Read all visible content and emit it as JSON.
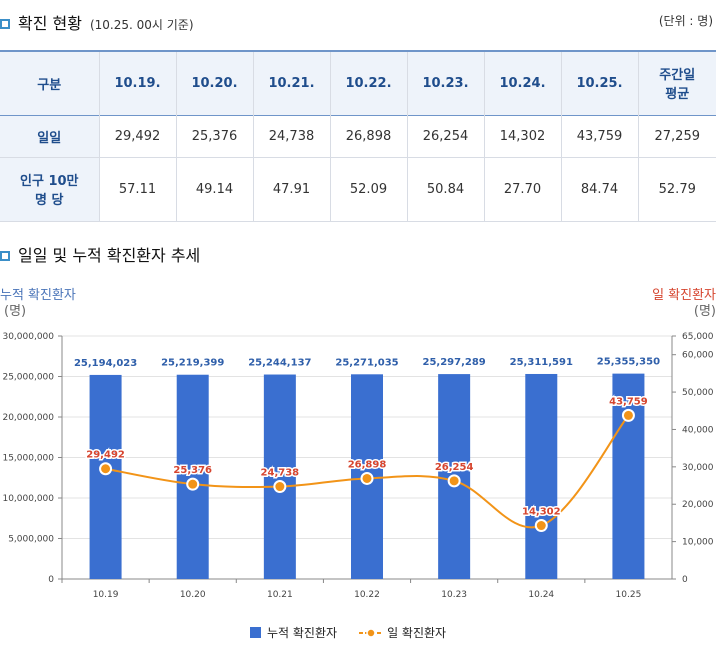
{
  "header": {
    "title": "확진 현황",
    "subtitle": "(10.25. 00시 기준)",
    "unit": "(단위 : 명)"
  },
  "table": {
    "corner": "구분",
    "columns": [
      "10.19.",
      "10.20.",
      "10.21.",
      "10.22.",
      "10.23.",
      "10.24.",
      "10.25.",
      "주간일\n평균"
    ],
    "rows": [
      {
        "label": "일일",
        "cells": [
          "29,492",
          "25,376",
          "24,738",
          "26,898",
          "26,254",
          "14,302",
          "43,759",
          "27,259"
        ]
      },
      {
        "label": "인구 10만\n명 당",
        "cells": [
          "57.11",
          "49.14",
          "47.91",
          "52.09",
          "50.84",
          "27.70",
          "84.74",
          "52.79"
        ]
      }
    ]
  },
  "chart_section": {
    "title": "일일 및 누적 확진환자 추세"
  },
  "colors": {
    "bar": "#3a6fd0",
    "line": "#f29418",
    "bar_label": "#2f5faa",
    "line_label": "#d6452f",
    "left_axis_title": "#4a74b8",
    "right_axis_title": "#d6452f"
  },
  "chart_data": {
    "type": "bar",
    "title": "일일 및 누적 확진환자 추세",
    "categories": [
      "10.19",
      "10.20",
      "10.21",
      "10.22",
      "10.23",
      "10.24",
      "10.25"
    ],
    "series": [
      {
        "name": "누적 확진환자",
        "kind": "bar",
        "axis": "left",
        "values": [
          25194023,
          25219399,
          25244137,
          25271035,
          25297289,
          25311591,
          25355350
        ],
        "labels": [
          "25,194,023",
          "25,219,399",
          "25,244,137",
          "25,271,035",
          "25,297,289",
          "25,311,591",
          "25,355,350"
        ]
      },
      {
        "name": "일 확진환자",
        "kind": "line",
        "axis": "right",
        "values": [
          29492,
          25376,
          24738,
          26898,
          26254,
          14302,
          43759
        ],
        "labels": [
          "29,492",
          "25,376",
          "24,738",
          "26,898",
          "26,254",
          "14,302",
          "43,759"
        ]
      }
    ],
    "left_axis": {
      "title": "누적 확진환자",
      "unit": "(명)",
      "ylim": [
        0,
        30000000
      ],
      "ticks": [
        0,
        5000000,
        10000000,
        15000000,
        20000000,
        25000000,
        30000000
      ],
      "tick_labels": [
        "0",
        "5,000,000",
        "10,000,000",
        "15,000,000",
        "20,000,000",
        "25,000,000",
        "30,000,000"
      ]
    },
    "right_axis": {
      "title": "일 확진환자",
      "unit": "(명)",
      "ylim": [
        0,
        65000
      ],
      "ticks": [
        0,
        10000,
        20000,
        30000,
        40000,
        50000,
        60000,
        65000
      ],
      "tick_labels": [
        "0",
        "10,000",
        "20,000",
        "30,000",
        "40,000",
        "50,000",
        "60,000",
        "65,000"
      ]
    },
    "legend": [
      "누적 확진환자",
      "일 확진환자"
    ],
    "legend_position": "bottom-center",
    "grid": true
  }
}
